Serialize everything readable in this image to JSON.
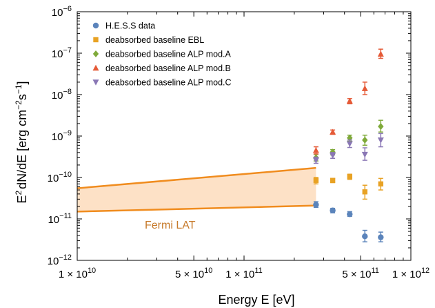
{
  "chart_data": {
    "type": "scatter",
    "x_scale": "log",
    "y_scale": "log",
    "xlim": [
      10000000000.0,
      1000000000000.0
    ],
    "ylim": [
      1e-12,
      1e-06
    ],
    "xlabel": "Energy E [eV]",
    "ylabel_parts": {
      "a": "E",
      "a_sup": "2",
      "b": "dN/dE [erg cm",
      "b_sup": "−2",
      "c": "s",
      "c_sup": "−1",
      "d": "]"
    },
    "x_ticks": [
      {
        "value": 10000000000.0,
        "mantissa": "1 × 10",
        "exp": "10"
      },
      {
        "value": 50000000000.0,
        "mantissa": "5 × 10",
        "exp": "10"
      },
      {
        "value": 100000000000.0,
        "mantissa": "1 × 10",
        "exp": "11"
      },
      {
        "value": 500000000000.0,
        "mantissa": "5 × 10",
        "exp": "11"
      },
      {
        "value": 1000000000000.0,
        "mantissa": "1 × 10",
        "exp": "12"
      }
    ],
    "y_ticks": [
      {
        "value": 1e-12,
        "base": "10",
        "exp": "−12"
      },
      {
        "value": 1e-11,
        "base": "10",
        "exp": "−11"
      },
      {
        "value": 1e-10,
        "base": "10",
        "exp": "−10"
      },
      {
        "value": 1e-09,
        "base": "10",
        "exp": "−9"
      },
      {
        "value": 1e-08,
        "base": "10",
        "exp": "−8"
      },
      {
        "value": 1e-07,
        "base": "10",
        "exp": "−7"
      },
      {
        "value": 1e-06,
        "base": "10",
        "exp": "−6"
      }
    ],
    "band": {
      "label": "Fermi LAT",
      "color": "#f08c1e",
      "fill": "#fde1c6",
      "upper": [
        [
          10000000000.0,
          5.5e-11
        ],
        [
          270000000000.0,
          1.7e-10
        ]
      ],
      "lower": [
        [
          10000000000.0,
          1.5e-11
        ],
        [
          270000000000.0,
          2.1e-11
        ]
      ]
    },
    "series": [
      {
        "name": "H.E.S.S data",
        "marker": "circle",
        "color": "#5b84bb",
        "points": [
          [
            270000000000.0,
            2.2e-11,
            1.9e-11,
            2.6e-11
          ],
          [
            340000000000.0,
            1.6e-11,
            1.4e-11,
            1.8e-11
          ],
          [
            430000000000.0,
            1.3e-11,
            1.15e-11,
            1.5e-11
          ],
          [
            530000000000.0,
            3.8e-12,
            2.8e-12,
            5.3e-12
          ],
          [
            660000000000.0,
            3.6e-12,
            2.8e-12,
            4.8e-12
          ]
        ]
      },
      {
        "name": "deabsorbed baseline EBL",
        "marker": "square",
        "color": "#e8a224",
        "points": [
          [
            270000000000.0,
            8.5e-11,
            7e-11,
            1e-10
          ],
          [
            340000000000.0,
            8.5e-11,
            7.5e-11,
            9.5e-11
          ],
          [
            430000000000.0,
            1.05e-10,
            9e-11,
            1.2e-10
          ],
          [
            530000000000.0,
            4.5e-11,
            3e-11,
            6.5e-11
          ],
          [
            660000000000.0,
            7e-11,
            5e-11,
            9.5e-11
          ]
        ]
      },
      {
        "name": "deabsorbed baseline ALP mod.A",
        "marker": "diamond",
        "color": "#7faa3a",
        "points": [
          [
            270000000000.0,
            3e-10,
            2.5e-10,
            3.6e-10
          ],
          [
            340000000000.0,
            4.1e-10,
            3.5e-10,
            4.7e-10
          ],
          [
            430000000000.0,
            9e-10,
            7.5e-10,
            1.05e-09
          ],
          [
            530000000000.0,
            8e-10,
            6e-10,
            1.05e-09
          ],
          [
            660000000000.0,
            1.7e-09,
            1.25e-09,
            2.4e-09
          ]
        ]
      },
      {
        "name": "deabsorbed baseline ALP mod.B",
        "marker": "triangle-up",
        "color": "#e55a37",
        "points": [
          [
            270000000000.0,
            4.5e-10,
            3.7e-10,
            5.5e-10
          ],
          [
            340000000000.0,
            1.25e-09,
            1.1e-09,
            1.4e-09
          ],
          [
            430000000000.0,
            7e-09,
            6e-09,
            8e-09
          ],
          [
            530000000000.0,
            1.4e-08,
            1e-08,
            2e-08
          ],
          [
            660000000000.0,
            9.5e-08,
            7.5e-08,
            1.25e-07
          ]
        ]
      },
      {
        "name": "deabsorbed baseline ALP mod.C",
        "marker": "triangle-down",
        "color": "#8a77b5",
        "points": [
          [
            270000000000.0,
            2.6e-10,
            2.2e-10,
            3.1e-10
          ],
          [
            340000000000.0,
            3.4e-10,
            2.9e-10,
            4e-10
          ],
          [
            430000000000.0,
            6.5e-10,
            5.3e-10,
            8e-10
          ],
          [
            530000000000.0,
            3.6e-10,
            2.6e-10,
            5.2e-10
          ],
          [
            660000000000.0,
            8e-10,
            5.5e-10,
            1.15e-09
          ]
        ]
      }
    ],
    "legend_position": "top-left",
    "grid": false
  }
}
